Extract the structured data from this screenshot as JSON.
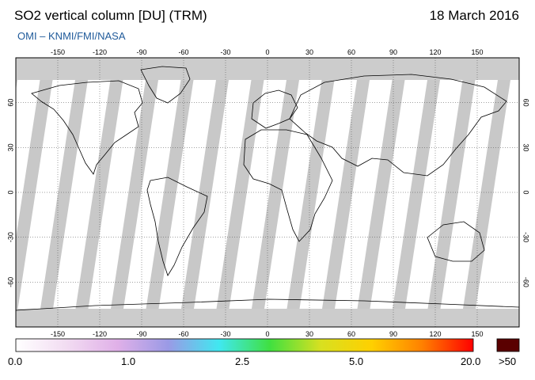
{
  "header": {
    "title": "SO2 vertical column [DU] (TRM)",
    "date": "18 March 2016",
    "credit": "OMI  –  KNMI/FMI/NASA"
  },
  "map": {
    "lon_ticks": [
      "-150",
      "-120",
      "-90",
      "-60",
      "-30",
      "0",
      "30",
      "60",
      "90",
      "120",
      "150"
    ],
    "lat_ticks": [
      "60",
      "30",
      "0",
      "-30",
      "-60"
    ],
    "colors": {
      "ocean": "#ffffff",
      "no_data": "#cccccc",
      "swath_gap": "#b0b0b0",
      "coast": "#000000",
      "grid": "#444444"
    }
  },
  "colorbar": {
    "labels": [
      "0.0",
      "1.0",
      "2.5",
      "5.0",
      "20.0",
      ">50"
    ],
    "gradient_stops": [
      "#ffffff",
      "#f2dcf2",
      "#e0b0e8",
      "#9a9ae6",
      "#40e8f0",
      "#40e040",
      "#d8e020",
      "#ffd000",
      "#ff8000",
      "#ff0000"
    ],
    "overflow_color": "#5a0000"
  }
}
